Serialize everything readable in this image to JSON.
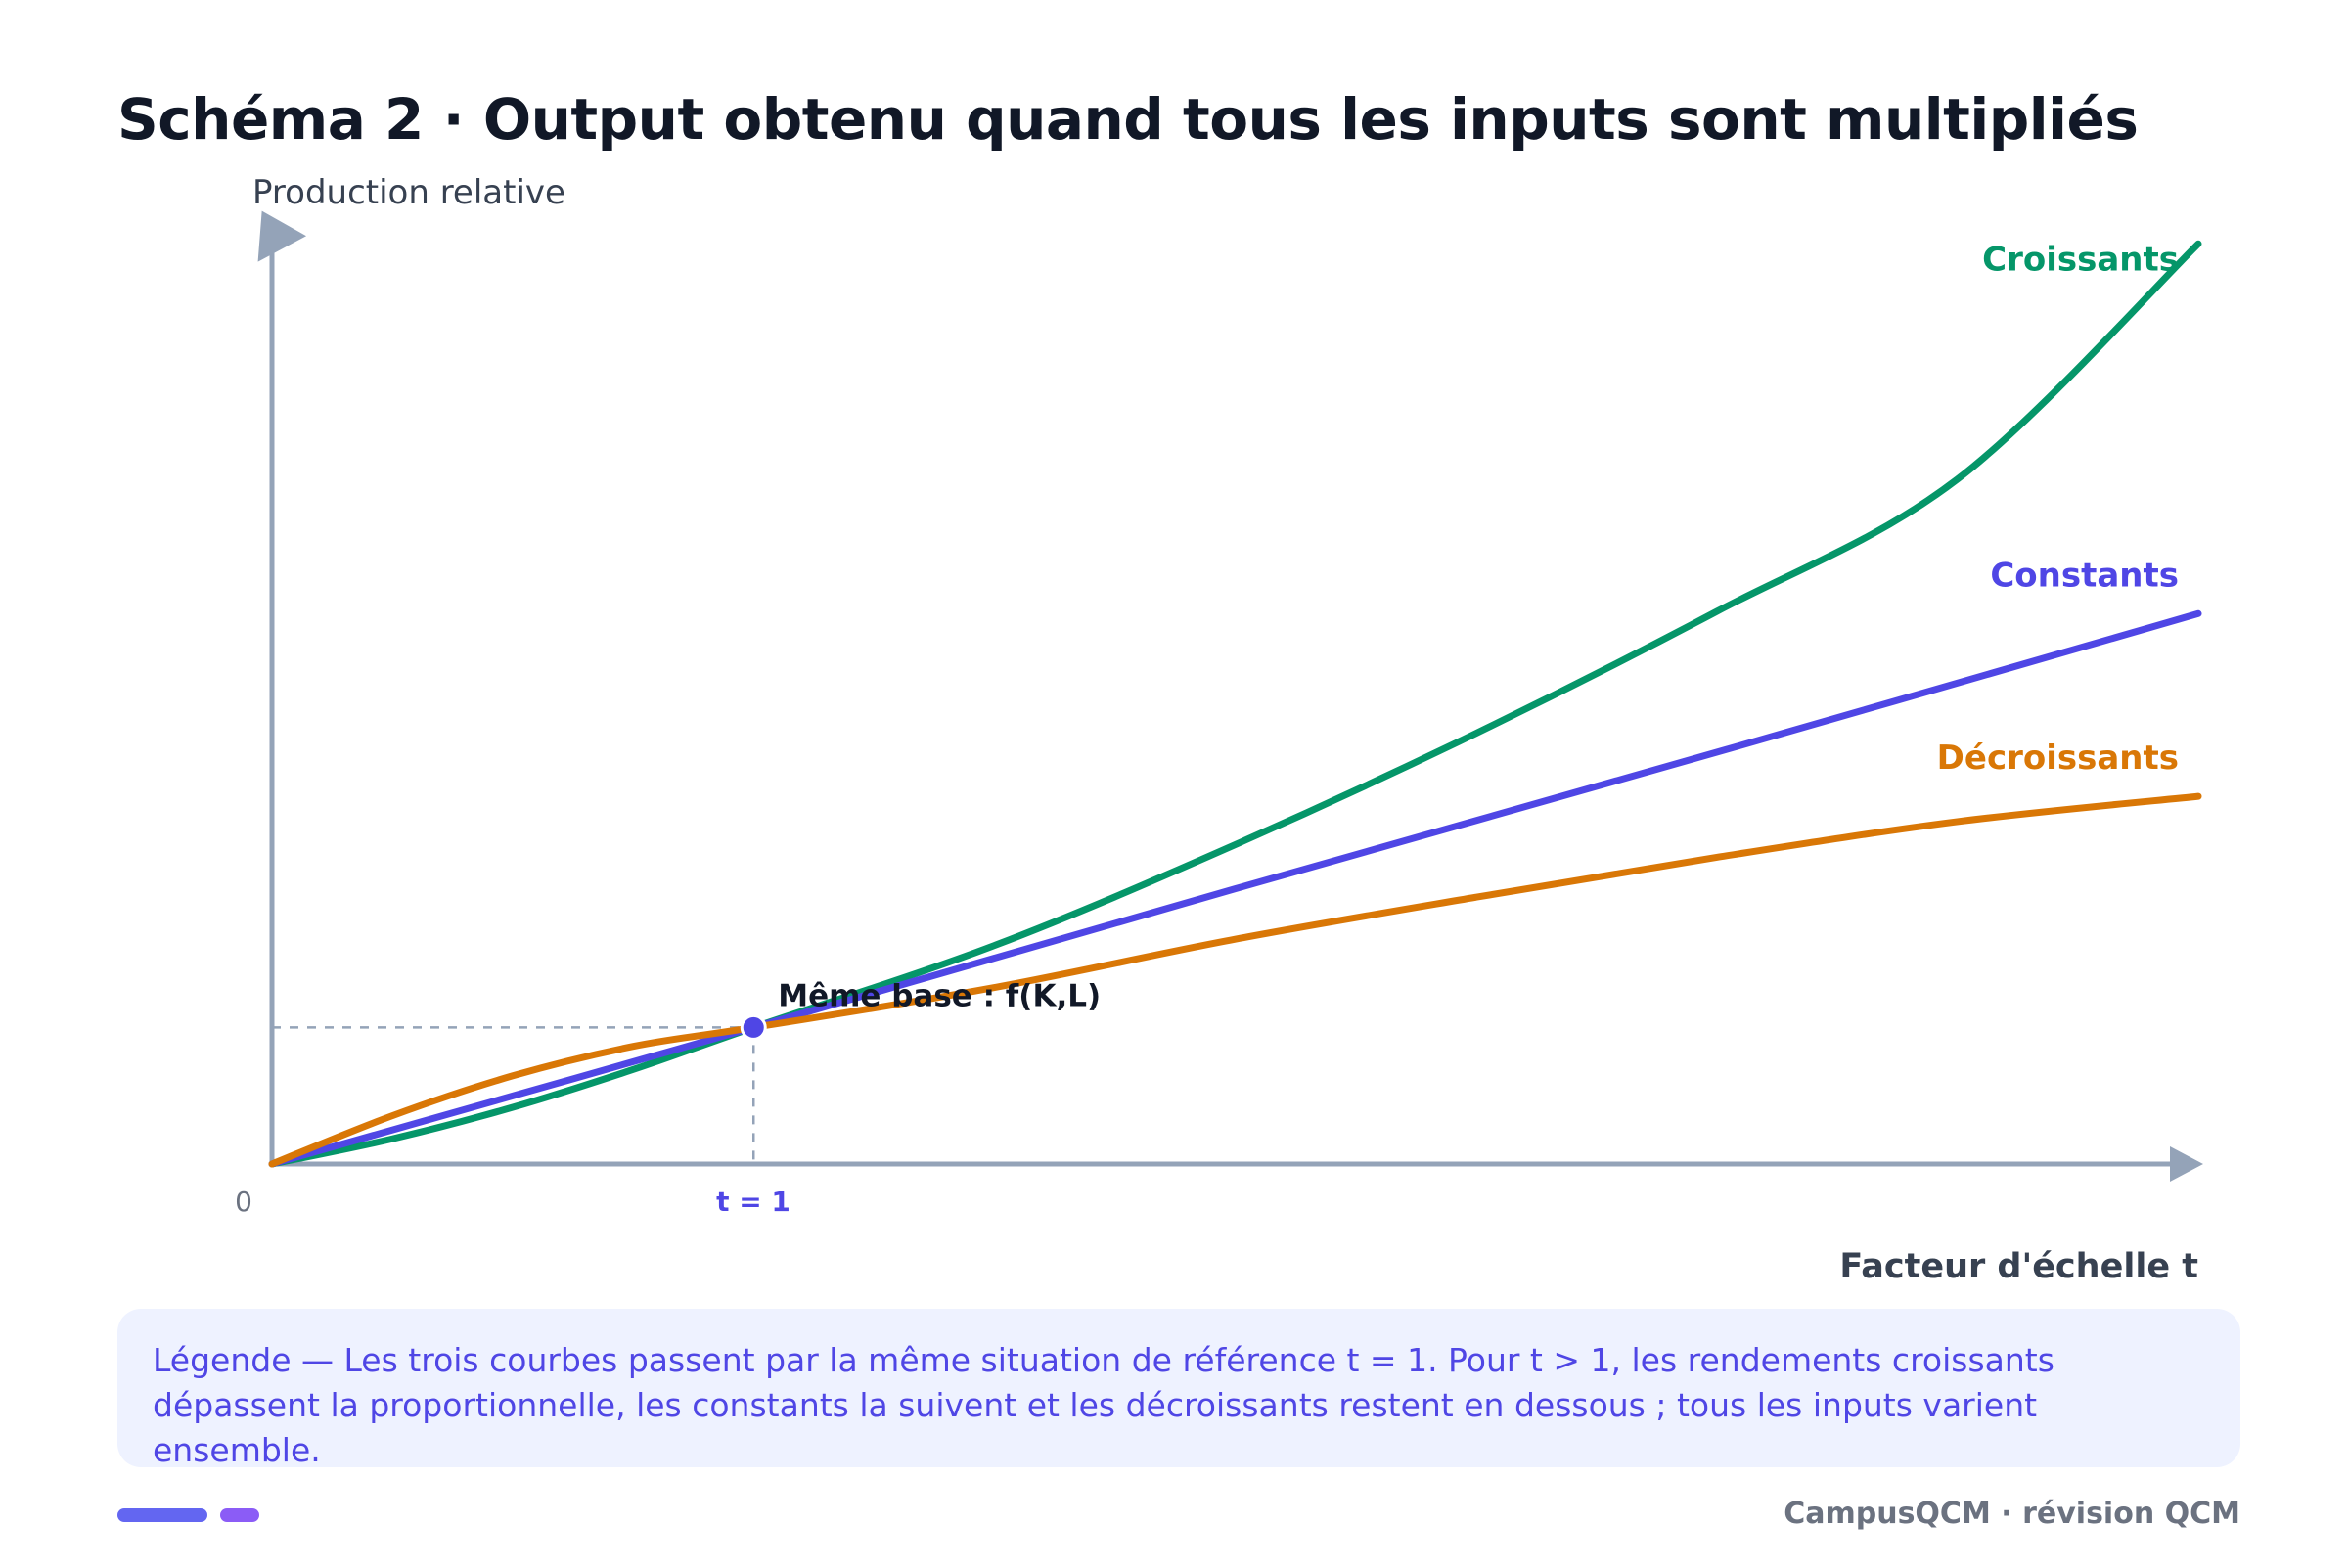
{
  "title": "Schéma 2 · Output obtenu quand tous les inputs sont multipliés",
  "chart_data": {
    "type": "line",
    "title": "Schéma 2 · Output obtenu quand tous les inputs sont multipliés",
    "xlabel": "Facteur d'échelle t",
    "ylabel": "Production relative",
    "x_ticks": [
      {
        "value": 0,
        "label": "0"
      },
      {
        "value": 1,
        "label": "t = 1"
      }
    ],
    "xlim": [
      0,
      4
    ],
    "ylim": [
      0,
      4.4
    ],
    "grid": false,
    "annotation": {
      "label": "Même base : f(K,L)",
      "x": 1,
      "y": 0.65
    },
    "reference_lines": [
      "t = 1",
      "y = f(K,L)"
    ],
    "series": [
      {
        "name": "Croissants",
        "color": "#059669",
        "x": [
          0,
          0.25,
          0.5,
          0.75,
          1,
          1.5,
          2,
          2.5,
          3,
          3.5,
          4
        ],
        "y": [
          0,
          0.12,
          0.27,
          0.45,
          0.65,
          1.04,
          1.52,
          2.05,
          2.63,
          3.26,
          4.38
        ]
      },
      {
        "name": "Constants",
        "color": "#4f46e5",
        "x": [
          0,
          1,
          2,
          3,
          4
        ],
        "y": [
          0,
          0.65,
          1.31,
          1.96,
          2.62
        ]
      },
      {
        "name": "Décroissants",
        "color": "#d97706",
        "x": [
          0,
          0.25,
          0.5,
          0.75,
          1,
          1.5,
          2,
          2.5,
          3,
          3.5,
          4
        ],
        "y": [
          0,
          0.23,
          0.42,
          0.56,
          0.65,
          0.84,
          1.07,
          1.27,
          1.46,
          1.63,
          1.75
        ]
      }
    ]
  },
  "legend_text": "Légende — Les trois courbes passent par la même situation de référence t = 1. Pour t > 1, les rendements croissants dépassent la proportionnelle, les constants la suivent et les décroissants restent en dessous ; tous les inputs varient ensemble.",
  "footer": {
    "brand": "CampusQCM · révision QCM"
  },
  "colors": {
    "axis": "#94a3b8",
    "accent": "#4f46e5",
    "text_dark": "#111827",
    "text_muted": "#374151"
  }
}
